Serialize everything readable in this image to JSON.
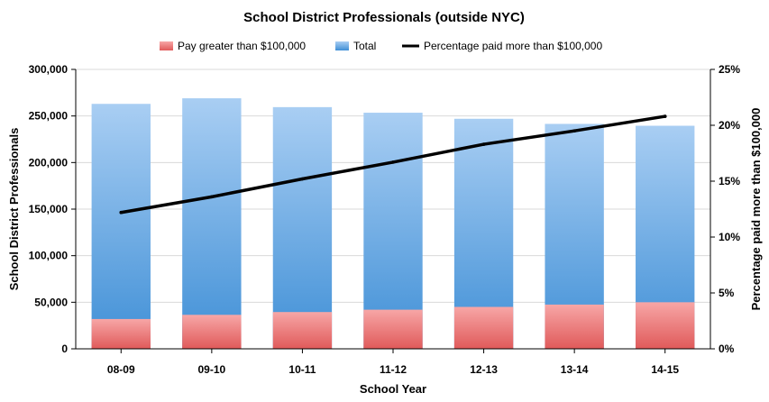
{
  "chart_data": {
    "type": "bar",
    "title": "School District Professionals (outside NYC)",
    "xlabel": "School Year",
    "ylabel": "School District Professionals",
    "y2label": "Percentage paid more than $100,000",
    "categories": [
      "08-09",
      "09-10",
      "10-11",
      "11-12",
      "12-13",
      "13-14",
      "14-15"
    ],
    "ylim": [
      0,
      300000
    ],
    "y_ticks": [
      "0",
      "50,000",
      "100,000",
      "150,000",
      "200,000",
      "250,000",
      "300,000"
    ],
    "y2lim": [
      0,
      25
    ],
    "y2_ticks": [
      "0%",
      "5%",
      "10%",
      "15%",
      "20%",
      "25%"
    ],
    "stacked": true,
    "legend_position": "top",
    "series": [
      {
        "name": "Pay greater than $100,000",
        "kind": "bar",
        "color": "#f28a8a",
        "values": [
          32000,
          36500,
          39500,
          42000,
          45000,
          47500,
          50000
        ]
      },
      {
        "name": "Total",
        "kind": "bar",
        "color": "#6aaee6",
        "values": [
          263000,
          269000,
          259500,
          253500,
          247000,
          241500,
          239500
        ]
      },
      {
        "name": "Percentage paid more than $100,000",
        "kind": "line",
        "axis": "right",
        "color": "#000000",
        "values": [
          12.2,
          13.6,
          15.2,
          16.7,
          18.3,
          19.5,
          20.8
        ]
      }
    ]
  }
}
